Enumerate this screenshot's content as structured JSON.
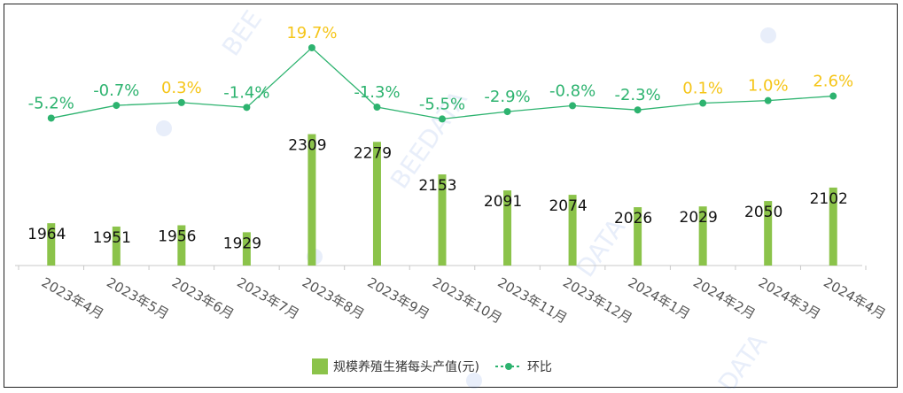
{
  "chart_data": {
    "type": "bar",
    "categories": [
      "2023年4月",
      "2023年5月",
      "2023年6月",
      "2023年7月",
      "2023年8月",
      "2023年9月",
      "2023年10月",
      "2023年11月",
      "2023年12月",
      "2024年1月",
      "2024年2月",
      "2024年3月",
      "2024年4月"
    ],
    "series": [
      {
        "name": "规模养殖生猪每头产值(元)",
        "type": "bar",
        "values": [
          1964,
          1951,
          1956,
          1929,
          2309,
          2279,
          2153,
          2091,
          2074,
          2026,
          2029,
          2050,
          2102
        ],
        "data_labels": [
          "1964",
          "1951",
          "1956",
          "1929",
          "2309",
          "2279",
          "2153",
          "2091",
          "2074",
          "2026",
          "2029",
          "2050",
          "2102"
        ],
        "color": "#8bc34a"
      },
      {
        "name": "环比",
        "type": "line",
        "values": [
          -5.2,
          -0.7,
          0.3,
          -1.4,
          19.7,
          -1.3,
          -5.5,
          -2.9,
          -0.8,
          -2.3,
          0.1,
          1.0,
          2.6
        ],
        "data_labels": [
          "-5.2%",
          "-0.7%",
          "0.3%",
          "-1.4%",
          "19.7%",
          "-1.3%",
          "-5.5%",
          "-2.9%",
          "-0.8%",
          "-2.3%",
          "0.1%",
          "1.0%",
          "2.6%"
        ],
        "color": "#2db36f",
        "positive_label_color": "#f5c518",
        "negative_label_color": "#2db36f"
      }
    ],
    "legend": {
      "position": "bottom",
      "items": [
        "规模养殖生猪每头产值(元)",
        "环比"
      ]
    },
    "grid": false
  }
}
